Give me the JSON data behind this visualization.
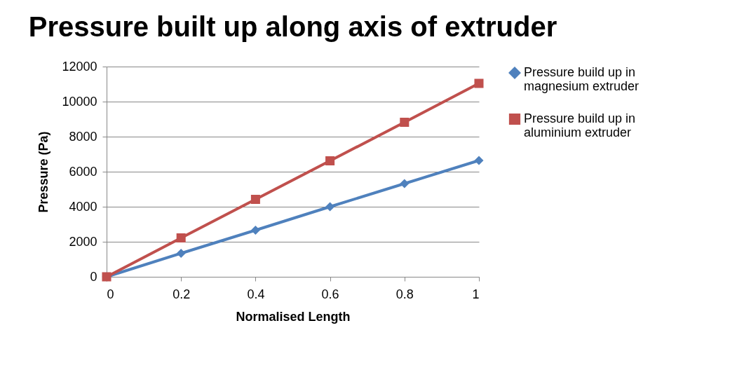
{
  "chart_data": {
    "type": "line",
    "title": "Pressure built up along axis of extruder",
    "xlabel": "Normalised Length",
    "ylabel": "Pressure (Pa)",
    "x": [
      0,
      0.2,
      0.4,
      0.6,
      0.8,
      1
    ],
    "series": [
      {
        "name": "Pressure build up in magnesium extruder",
        "color": "#4f81bd",
        "marker": "diamond",
        "values": [
          0,
          1340,
          2660,
          4000,
          5320,
          6640
        ]
      },
      {
        "name": "Pressure build up in aluminium extruder",
        "color": "#c0504d",
        "marker": "square",
        "values": [
          0,
          2220,
          4420,
          6620,
          8820,
          11040
        ]
      }
    ],
    "xlim": [
      0,
      1
    ],
    "xticks": [
      0,
      0.2,
      0.4,
      0.6,
      0.8,
      1
    ],
    "ylim": [
      0,
      12000
    ],
    "yticks": [
      0,
      2000,
      4000,
      6000,
      8000,
      10000,
      12000
    ],
    "grid": "y",
    "legend": "right",
    "line_style": "solid"
  }
}
